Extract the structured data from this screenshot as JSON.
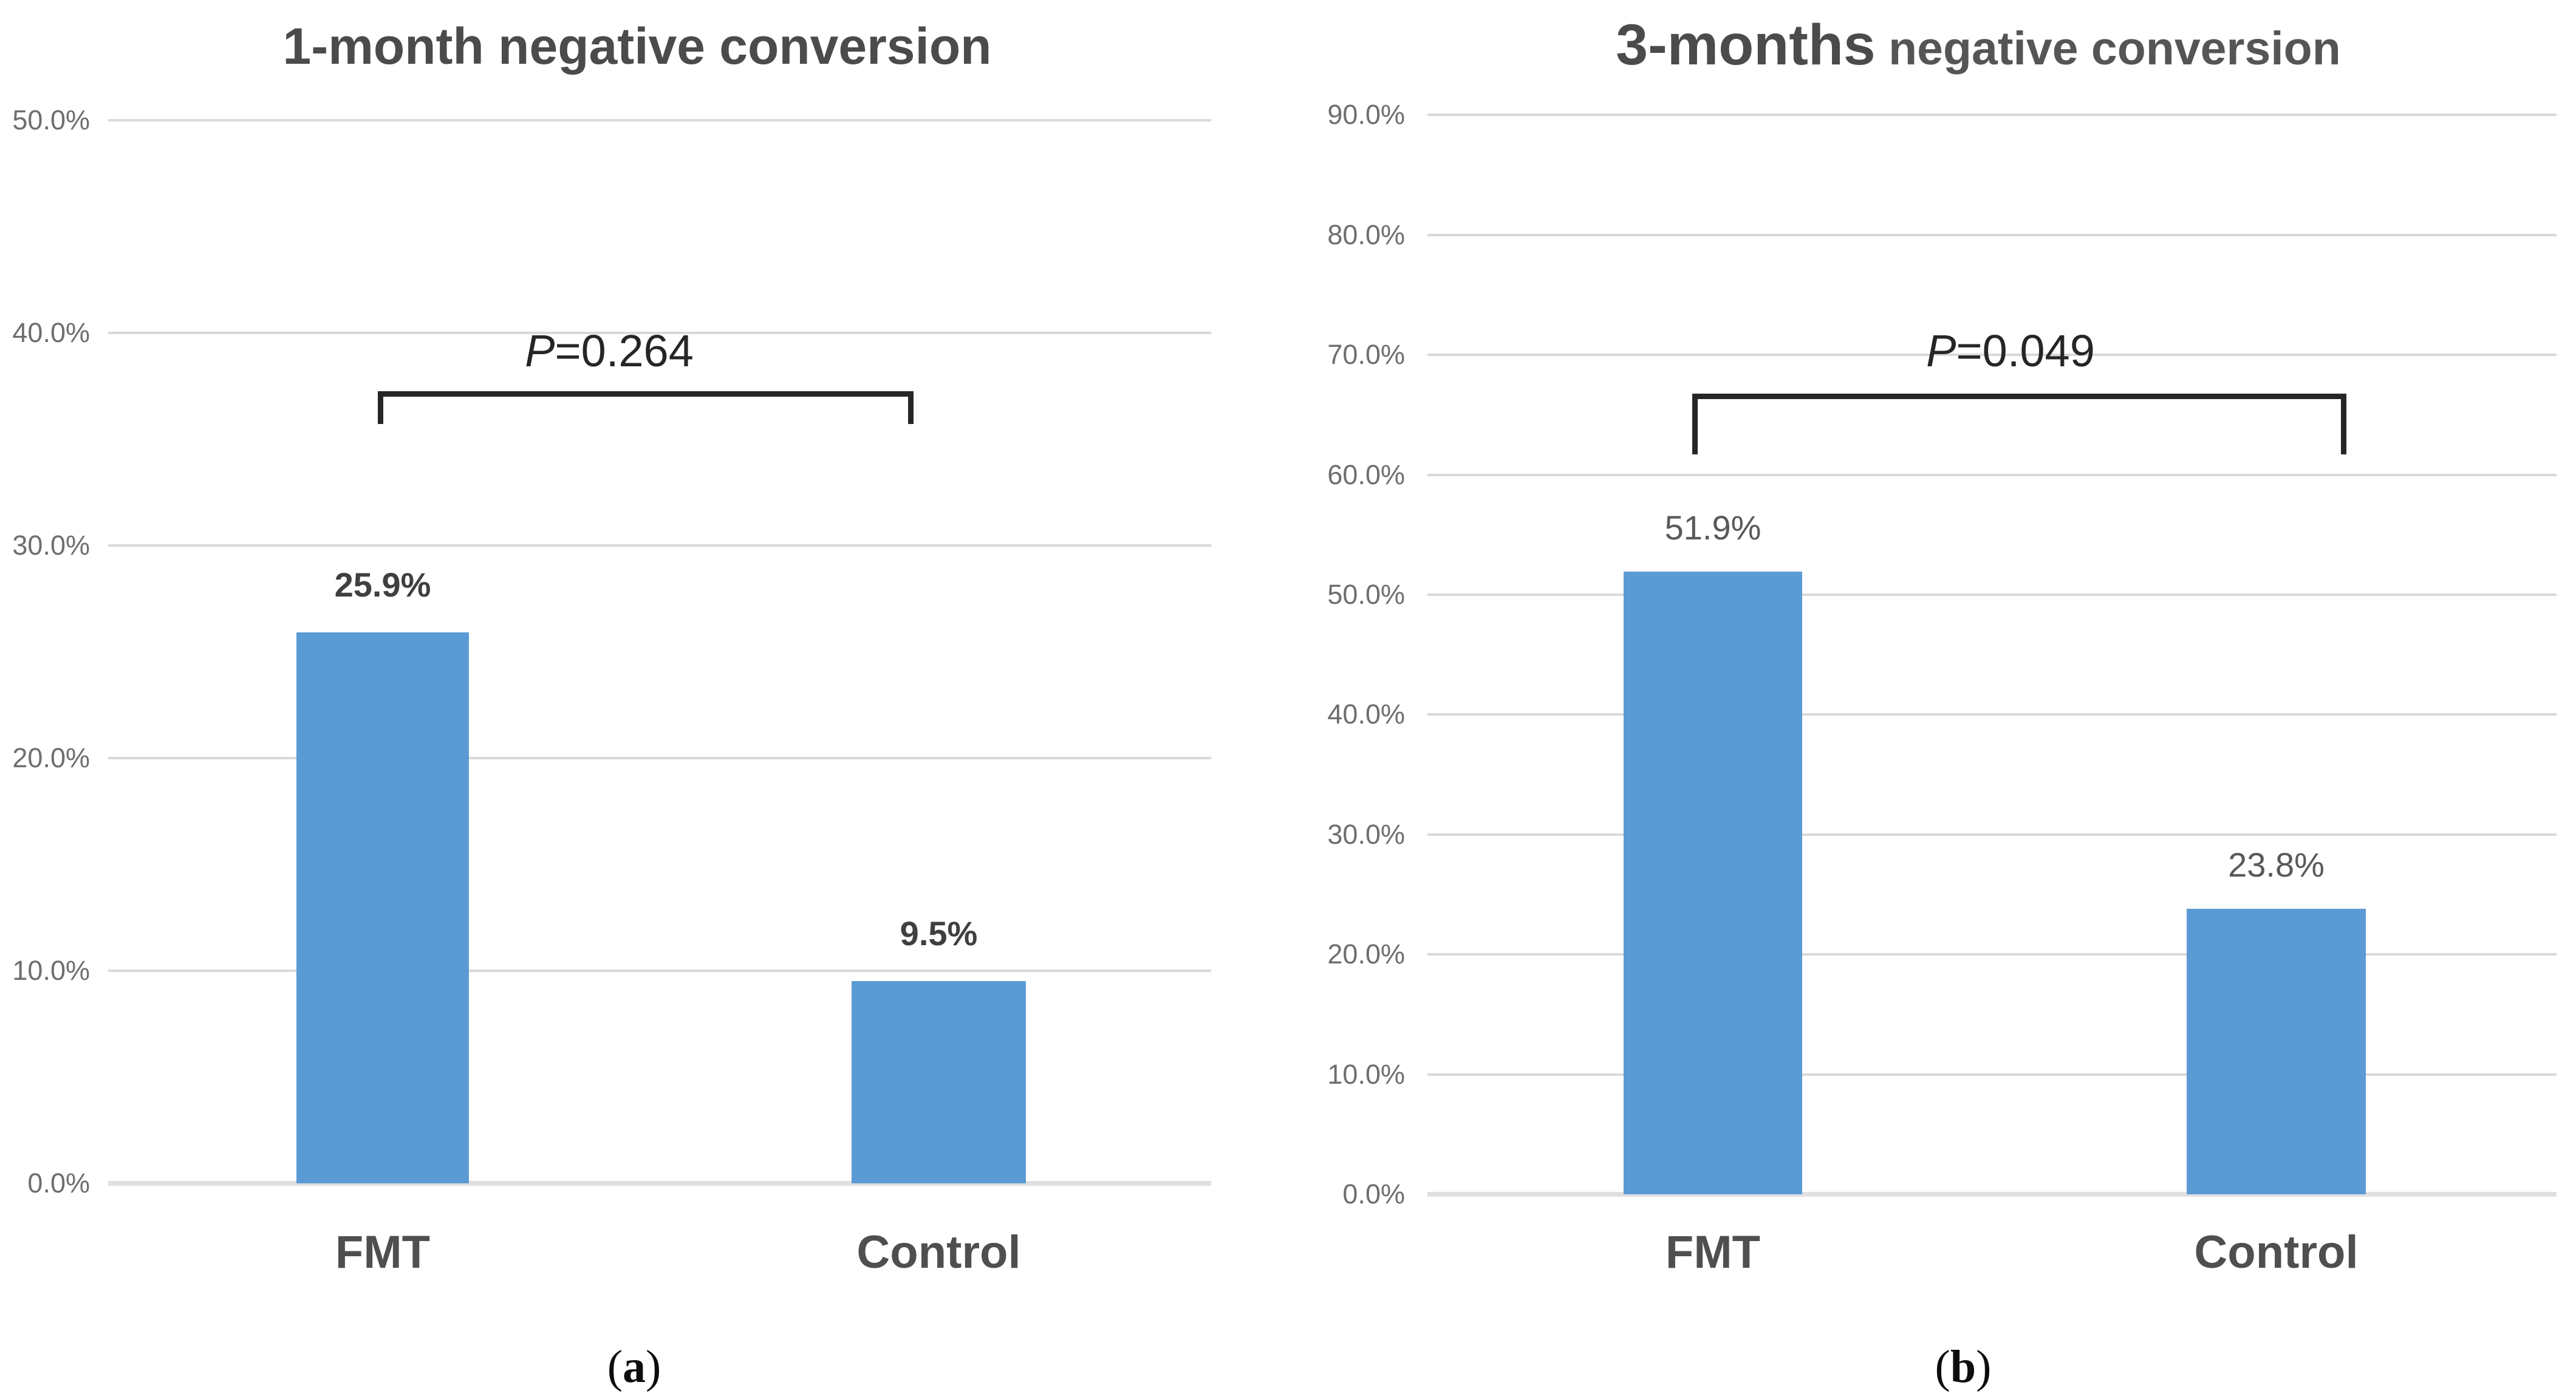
{
  "chart_data": [
    {
      "type": "bar",
      "panel": "a",
      "title_lead": "1-month",
      "title_rest": " negative conversion",
      "title": "1-month negative conversion",
      "categories": [
        "FMT",
        "Control"
      ],
      "values": [
        25.9,
        9.5
      ],
      "value_labels": [
        "25.9%",
        "9.5%"
      ],
      "ylim": [
        0,
        50
      ],
      "ytick_step": 10,
      "ytick_labels": [
        "50.0%",
        "40.0%",
        "30.0%",
        "20.0%",
        "10.0%",
        "0.0%"
      ],
      "grid": true,
      "legend": "none",
      "bar_color": "#5b9bd5",
      "p_sym": "P",
      "p_rest": "=0.264",
      "annotation": "P=0.264",
      "panel_prefix": "(",
      "panel_letter": "a",
      "panel_suffix": ")"
    },
    {
      "type": "bar",
      "panel": "b",
      "title_lead": "3-months",
      "title_rest": " negative conversion",
      "title": "3-months negative conversion",
      "categories": [
        "FMT",
        "Control"
      ],
      "values": [
        51.9,
        23.8
      ],
      "value_labels": [
        "51.9%",
        "23.8%"
      ],
      "ylim": [
        0,
        90
      ],
      "ytick_step": 10,
      "ytick_labels": [
        "90.0%",
        "80.0%",
        "70.0%",
        "60.0%",
        "50.0%",
        "40.0%",
        "30.0%",
        "20.0%",
        "10.0%",
        "0.0%"
      ],
      "grid": true,
      "legend": "none",
      "bar_color": "#5b9bd5",
      "p_sym": "P",
      "p_rest": "=0.049",
      "annotation": "P=0.049",
      "panel_prefix": "(",
      "panel_letter": "b",
      "panel_suffix": ")"
    }
  ]
}
